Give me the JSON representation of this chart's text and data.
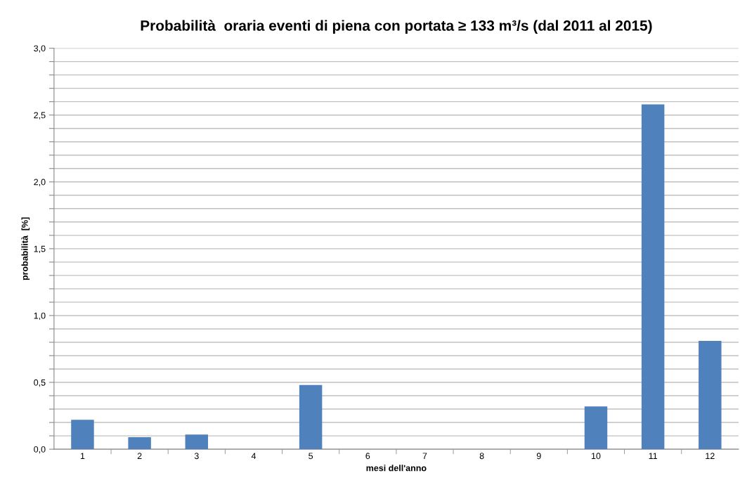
{
  "chart_data": {
    "type": "bar",
    "title": "Probabilità  oraria eventi di piena con portata ≥ 133 m³/s (dal 2011 al 2015)",
    "xlabel": "mesi dell'anno",
    "ylabel": "probabilità  [%]",
    "categories": [
      "1",
      "2",
      "3",
      "4",
      "5",
      "6",
      "7",
      "8",
      "9",
      "10",
      "11",
      "12"
    ],
    "values": [
      0.22,
      0.09,
      0.11,
      0,
      0.48,
      0,
      0,
      0,
      0,
      0.32,
      2.58,
      0.81
    ],
    "color": "#4f81bd",
    "ylim": [
      0,
      3
    ],
    "yticks": [
      {
        "value": 0,
        "label": "0,0"
      },
      {
        "value": 0.1,
        "label": null
      },
      {
        "value": 0.2,
        "label": null
      },
      {
        "value": 0.3,
        "label": null
      },
      {
        "value": 0.4,
        "label": null
      },
      {
        "value": 0.5,
        "label": "0,5"
      },
      {
        "value": 0.6,
        "label": null
      },
      {
        "value": 0.7,
        "label": null
      },
      {
        "value": 0.8,
        "label": null
      },
      {
        "value": 0.9,
        "label": null
      },
      {
        "value": 1.0,
        "label": "1,0"
      },
      {
        "value": 1.1,
        "label": null
      },
      {
        "value": 1.2,
        "label": null
      },
      {
        "value": 1.3,
        "label": null
      },
      {
        "value": 1.4,
        "label": null
      },
      {
        "value": 1.5,
        "label": "1,5"
      },
      {
        "value": 1.6,
        "label": null
      },
      {
        "value": 1.7,
        "label": null
      },
      {
        "value": 1.8,
        "label": null
      },
      {
        "value": 1.9,
        "label": null
      },
      {
        "value": 2.0,
        "label": "2,0"
      },
      {
        "value": 2.1,
        "label": null
      },
      {
        "value": 2.2,
        "label": null
      },
      {
        "value": 2.3,
        "label": null
      },
      {
        "value": 2.4,
        "label": null
      },
      {
        "value": 2.5,
        "label": "2,5"
      },
      {
        "value": 2.6,
        "label": null
      },
      {
        "value": 2.7,
        "label": null
      },
      {
        "value": 2.8,
        "label": null
      },
      {
        "value": 2.9,
        "label": null
      },
      {
        "value": 3.0,
        "label": "3,0"
      }
    ],
    "grid": "y",
    "legend": false
  }
}
